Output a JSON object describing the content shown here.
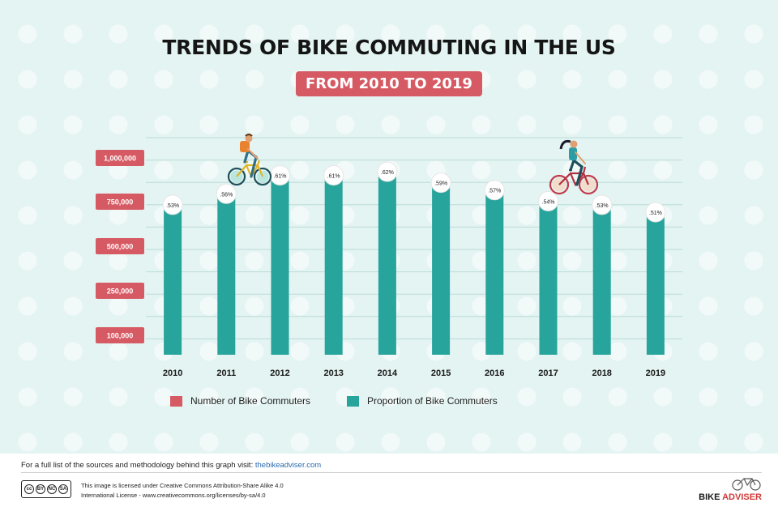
{
  "header": {
    "title": "TRENDS OF BIKE COMMUTING IN THE US",
    "subtitle": "FROM 2010 TO 2019"
  },
  "colors": {
    "background": "#e3f4f2",
    "bar": "#27a49b",
    "accent": "#d65a63",
    "gridline": "#bcdcd8"
  },
  "chart_data": {
    "type": "bar",
    "categories": [
      "2010",
      "2011",
      "2012",
      "2013",
      "2014",
      "2015",
      "2016",
      "2017",
      "2018",
      "2019"
    ],
    "series": [
      {
        "name": "Number of Bike Commuters",
        "values": [
          null,
          null,
          null,
          null,
          null,
          null,
          null,
          null,
          null,
          null
        ]
      },
      {
        "name": "Proportion of Bike Commuters",
        "values": [
          0.53,
          0.56,
          0.61,
          0.61,
          0.62,
          0.59,
          0.57,
          0.54,
          0.53,
          0.51
        ]
      }
    ],
    "bar_labels": [
      ".53%",
      ".56%",
      ".61%",
      ".61%",
      ".62%",
      ".59%",
      ".57%",
      ".54%",
      ".53%",
      ".51%"
    ],
    "y_tick_labels": [
      "1,000,000",
      "750,000",
      "500,000",
      "250,000",
      "100,000"
    ],
    "title": "TRENDS OF BIKE COMMUTING IN THE US",
    "subtitle": "FROM 2010 TO 2019",
    "xlabel": "",
    "ylabel": "",
    "grid": true,
    "legend": "bottom"
  },
  "legend": {
    "items": [
      {
        "label": "Number of Bike Commuters",
        "color": "#d65a63"
      },
      {
        "label": "Proportion of Bike Commuters",
        "color": "#27a49b"
      }
    ]
  },
  "footer": {
    "sources_text": "For a full list of the sources and methodology behind this graph visit: ",
    "sources_link": "thebikeadviser.com",
    "license_line1": "This image is licensed under Creative Commons Attribution-Share Alike 4.0",
    "license_line2": "International License - www.creativecommons.org/licenses/by-sa/4.0",
    "cc_badge": [
      "cc",
      "BY",
      "NC",
      "SA"
    ],
    "logo_word1": "BIKE",
    "logo_word2": "ADVISER"
  },
  "illustrations": [
    "man-cyclist-icon",
    "woman-cyclist-icon",
    "bicycle-logo-icon"
  ]
}
